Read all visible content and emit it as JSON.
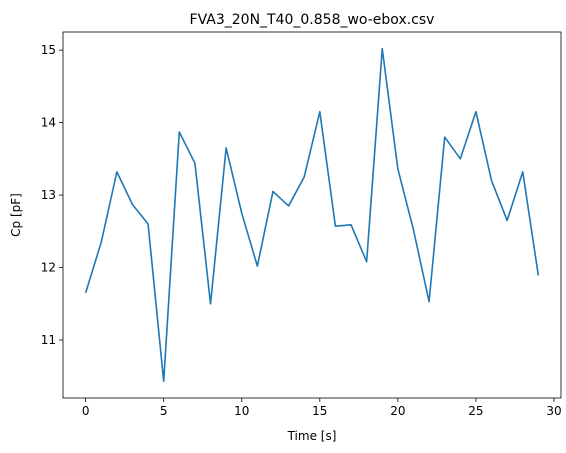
{
  "chart_data": {
    "type": "line",
    "title": "FVA3_20N_T40_0.858_wo-ebox.csv",
    "xlabel": "Time [s]",
    "ylabel": "Cp [pF]",
    "xlim": [
      -1.45,
      30.45
    ],
    "ylim": [
      10.2,
      15.25
    ],
    "xticks": [
      0,
      5,
      10,
      15,
      20,
      25,
      30
    ],
    "yticks": [
      11,
      12,
      13,
      14,
      15
    ],
    "grid": false,
    "legend": "none",
    "series": [
      {
        "color": "#1f77b4",
        "x": [
          0,
          1,
          2,
          3,
          4,
          5,
          6,
          7,
          8,
          9,
          10,
          11,
          12,
          13,
          14,
          15,
          16,
          17,
          18,
          19,
          20,
          21,
          22,
          23,
          24,
          25,
          26,
          27,
          28,
          29
        ],
        "y": [
          11.65,
          12.35,
          13.32,
          12.87,
          12.6,
          10.43,
          13.87,
          13.44,
          11.5,
          13.65,
          12.75,
          12.02,
          13.05,
          12.85,
          13.25,
          14.15,
          12.57,
          12.59,
          12.08,
          15.02,
          13.36,
          12.52,
          11.53,
          13.8,
          13.5,
          14.15,
          13.2,
          12.65,
          13.32,
          11.89
        ]
      }
    ]
  }
}
